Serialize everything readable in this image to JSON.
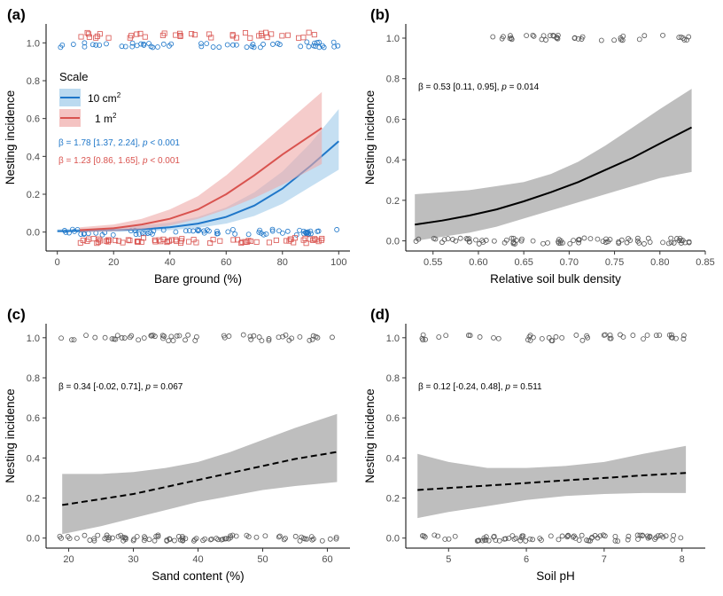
{
  "colors": {
    "blue": "#1f77c9",
    "blue_fill": "#9ecae9",
    "red": "#d9534f",
    "red_fill": "#efaaa8",
    "grey_fill": "#bebebe",
    "black": "#000000",
    "point": "#555555"
  },
  "chart_data": [
    {
      "panel": "(a)",
      "type": "line",
      "xlabel": "Bare ground (%)",
      "ylabel": "Nesting incidence",
      "xlim": [
        -4,
        104
      ],
      "ylim": [
        -0.1,
        1.1
      ],
      "xticks": [
        "0",
        "20",
        "40",
        "60",
        "80",
        "100"
      ],
      "yticks": [
        "0.0",
        "0.2",
        "0.4",
        "0.6",
        "0.8",
        "1.0"
      ],
      "legend": {
        "title": "Scale",
        "placement": "top-left",
        "entries": [
          {
            "label_main": "10 cm",
            "label_sup": "2",
            "color": "blue"
          },
          {
            "label_main": "1 m",
            "label_sup": "2",
            "color": "red"
          }
        ]
      },
      "annotations": [
        {
          "prefix": "β = 1.78 [1.37, 2.24], ",
          "p_symbol": "p",
          "suffix": " < 0.001",
          "color": "blue"
        },
        {
          "prefix": "β = 1.23 [0.86, 1.65], ",
          "p_symbol": "p",
          "suffix": " < 0.001",
          "color": "red"
        }
      ],
      "series": [
        {
          "name": "10 cm2",
          "color": "blue",
          "fill": "blue_fill",
          "dash": false,
          "marker": "circle",
          "x": [
            0,
            10,
            20,
            30,
            40,
            50,
            60,
            70,
            80,
            90,
            100
          ],
          "y": [
            0.005,
            0.007,
            0.01,
            0.015,
            0.025,
            0.045,
            0.08,
            0.14,
            0.23,
            0.35,
            0.48
          ],
          "lower": [
            0.0,
            0.001,
            0.002,
            0.005,
            0.01,
            0.022,
            0.045,
            0.085,
            0.15,
            0.24,
            0.33
          ],
          "upper": [
            0.015,
            0.018,
            0.025,
            0.035,
            0.05,
            0.08,
            0.13,
            0.21,
            0.32,
            0.47,
            0.65
          ],
          "points": {
            "x_min": 0,
            "x_max": 100,
            "n1": 55,
            "n0": 70
          }
        },
        {
          "name": "1 m2",
          "color": "red",
          "fill": "red_fill",
          "dash": false,
          "marker": "square",
          "x": [
            8,
            20,
            30,
            40,
            50,
            60,
            70,
            80,
            94
          ],
          "y": [
            0.01,
            0.02,
            0.04,
            0.07,
            0.12,
            0.2,
            0.3,
            0.41,
            0.55
          ],
          "lower": [
            0.0,
            0.005,
            0.015,
            0.035,
            0.07,
            0.12,
            0.18,
            0.25,
            0.36
          ],
          "upper": [
            0.025,
            0.04,
            0.07,
            0.12,
            0.19,
            0.3,
            0.43,
            0.56,
            0.74
          ],
          "points": {
            "x_min": 8,
            "x_max": 95,
            "n1": 40,
            "n0": 70
          }
        }
      ]
    },
    {
      "panel": "(b)",
      "type": "line",
      "xlabel": "Relative soil bulk density",
      "ylabel": "Nesting incidence",
      "xlim": [
        0.52,
        0.85
      ],
      "ylim": [
        -0.05,
        1.07
      ],
      "xticks": [
        "0.55",
        "0.60",
        "0.65",
        "0.70",
        "0.75",
        "0.80",
        "0.85"
      ],
      "yticks": [
        "0.0",
        "0.2",
        "0.4",
        "0.6",
        "0.8",
        "1.0"
      ],
      "annotations": [
        {
          "prefix": "β = 0.53 [0.11, 0.95], ",
          "p_symbol": "p",
          "suffix": " = 0.014",
          "color": "black"
        }
      ],
      "series": [
        {
          "color": "black",
          "fill": "grey_fill",
          "dash": false,
          "marker": "circle",
          "x": [
            0.53,
            0.56,
            0.59,
            0.62,
            0.65,
            0.68,
            0.71,
            0.74,
            0.77,
            0.8,
            0.835
          ],
          "y": [
            0.08,
            0.1,
            0.125,
            0.155,
            0.195,
            0.24,
            0.29,
            0.35,
            0.41,
            0.48,
            0.56
          ],
          "lower": [
            0.0,
            0.02,
            0.04,
            0.07,
            0.11,
            0.15,
            0.19,
            0.23,
            0.27,
            0.31,
            0.34
          ],
          "upper": [
            0.23,
            0.24,
            0.25,
            0.27,
            0.29,
            0.33,
            0.39,
            0.47,
            0.56,
            0.65,
            0.75
          ],
          "points": {
            "x_min": 0.53,
            "x_max": 0.837,
            "n1": 40,
            "n0": 80,
            "x1_min": 0.615
          }
        }
      ]
    },
    {
      "panel": "(c)",
      "type": "line",
      "xlabel": "Sand content (%)",
      "ylabel": "Nesting incidence",
      "xlim": [
        16.5,
        63.5
      ],
      "ylim": [
        -0.05,
        1.07
      ],
      "xticks": [
        "20",
        "30",
        "40",
        "50",
        "60"
      ],
      "yticks": [
        "0.0",
        "0.2",
        "0.4",
        "0.6",
        "0.8",
        "1.0"
      ],
      "annotations": [
        {
          "prefix": "β = 0.34 [-0.02, 0.71], ",
          "p_symbol": "p",
          "suffix": " = 0.067",
          "color": "black"
        }
      ],
      "series": [
        {
          "color": "black",
          "fill": "grey_fill",
          "dash": true,
          "marker": "circle",
          "x": [
            19,
            25,
            30,
            35,
            40,
            45,
            50,
            55,
            61.5
          ],
          "y": [
            0.165,
            0.195,
            0.22,
            0.255,
            0.29,
            0.325,
            0.36,
            0.395,
            0.43
          ],
          "lower": [
            0.02,
            0.06,
            0.1,
            0.14,
            0.18,
            0.21,
            0.24,
            0.26,
            0.28
          ],
          "upper": [
            0.32,
            0.32,
            0.33,
            0.35,
            0.38,
            0.43,
            0.49,
            0.55,
            0.62
          ],
          "points": {
            "x_min": 18.5,
            "x_max": 62,
            "n1": 55,
            "n0": 85
          }
        }
      ]
    },
    {
      "panel": "(d)",
      "type": "line",
      "xlabel": "Soil pH",
      "ylabel": "Nesting incidence",
      "xlim": [
        4.45,
        8.3
      ],
      "ylim": [
        -0.05,
        1.07
      ],
      "xticks": [
        "5",
        "6",
        "7",
        "8"
      ],
      "yticks": [
        "0.0",
        "0.2",
        "0.4",
        "0.6",
        "0.8",
        "1.0"
      ],
      "annotations": [
        {
          "prefix": "β = 0.12 [-0.24, 0.48], ",
          "p_symbol": "p",
          "suffix": " = 0.511",
          "color": "black"
        }
      ],
      "series": [
        {
          "color": "black",
          "fill": "grey_fill",
          "dash": true,
          "marker": "circle",
          "x": [
            4.6,
            5.0,
            5.5,
            6.0,
            6.5,
            7.0,
            7.5,
            8.05
          ],
          "y": [
            0.24,
            0.25,
            0.262,
            0.275,
            0.288,
            0.3,
            0.313,
            0.325
          ],
          "lower": [
            0.1,
            0.13,
            0.16,
            0.19,
            0.21,
            0.22,
            0.225,
            0.225
          ],
          "upper": [
            0.42,
            0.38,
            0.35,
            0.35,
            0.36,
            0.38,
            0.42,
            0.46
          ],
          "points": {
            "x_min": 4.6,
            "x_max": 8.07,
            "n1": 45,
            "n0": 80
          }
        }
      ]
    }
  ]
}
